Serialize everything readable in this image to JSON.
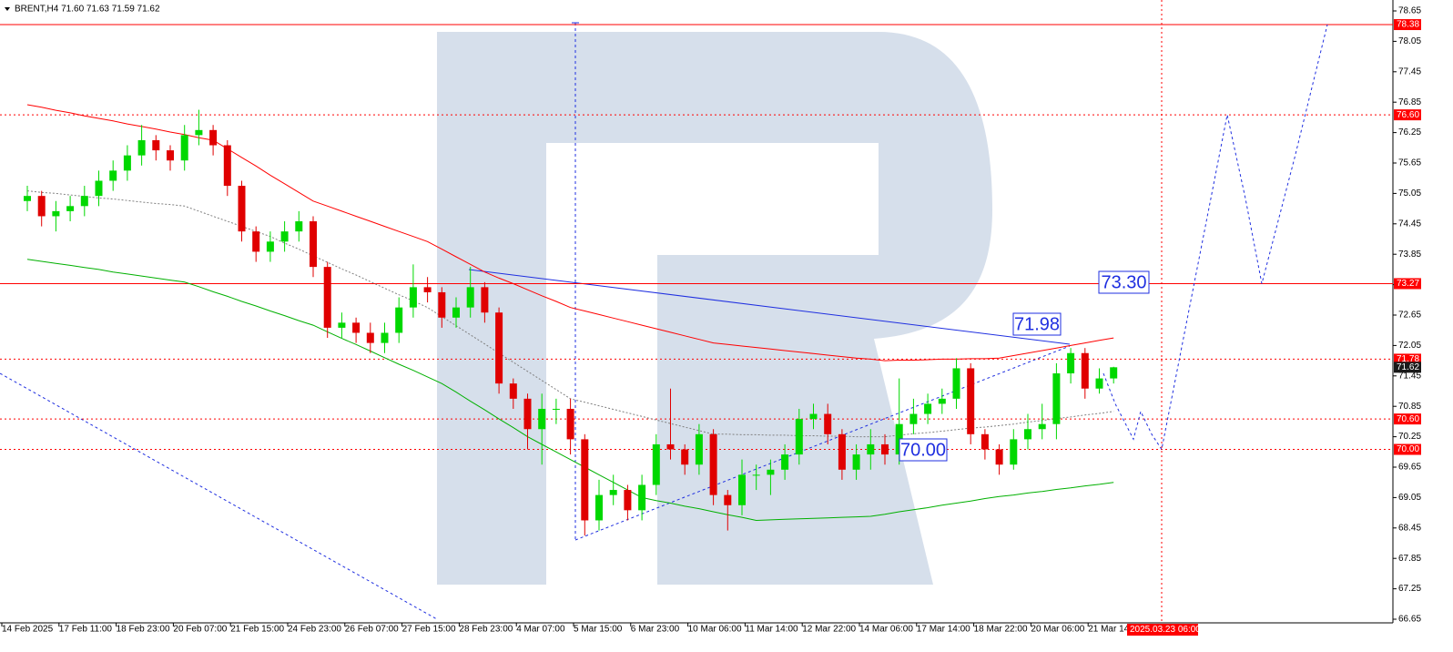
{
  "chart_data": {
    "type": "candlestick",
    "title": "BRENT,H4  71.60 71.63 71.59 71.62",
    "up_color": "#00d800",
    "down_color": "#e00000",
    "categories": [
      "14 Feb 2025",
      null,
      null,
      null,
      "17 Feb 11:00",
      null,
      null,
      null,
      "18 Feb 23:00",
      null,
      null,
      null,
      "20 Feb 07:00",
      null,
      null,
      null,
      "21 Feb 15:00",
      null,
      null,
      null,
      "24 Feb 23:00",
      null,
      null,
      null,
      "26 Feb 07:00",
      null,
      null,
      null,
      "27 Feb 15:00",
      null,
      null,
      null,
      "28 Feb 23:00",
      null,
      null,
      null,
      "4 Mar 07:00",
      null,
      null,
      null,
      "5 Mar 15:00",
      null,
      null,
      null,
      "6 Mar 23:00",
      null,
      null,
      null,
      "10 Mar 06:00",
      null,
      null,
      null,
      "11 Mar 14:00",
      null,
      null,
      null,
      "12 Mar 22:00",
      null,
      null,
      null,
      "14 Mar 06:00",
      null,
      null,
      null,
      "17 Mar 14:00",
      null,
      null,
      null,
      "18 Mar 22:00",
      null,
      null,
      null,
      "20 Mar 06:00",
      null,
      null,
      null,
      "21 Mar 14:00"
    ],
    "open": [
      74.9,
      75.0,
      74.6,
      74.7,
      74.8,
      75.0,
      75.3,
      75.5,
      75.8,
      76.1,
      75.9,
      75.7,
      76.2,
      76.3,
      76.0,
      75.2,
      74.3,
      73.9,
      74.1,
      74.3,
      74.5,
      73.6,
      72.4,
      72.5,
      72.3,
      72.1,
      72.3,
      72.8,
      73.2,
      73.1,
      72.6,
      72.8,
      73.2,
      72.7,
      71.3,
      71.0,
      70.4,
      70.8,
      70.8,
      70.2,
      68.6,
      69.1,
      69.2,
      68.8,
      69.3,
      70.1,
      70.0,
      69.7,
      70.3,
      69.1,
      68.9,
      69.5,
      69.5,
      69.6,
      69.9,
      70.6,
      70.7,
      70.3,
      69.6,
      69.9,
      70.1,
      69.9,
      70.5,
      70.7,
      70.9,
      71.0,
      71.6,
      70.3,
      70.0,
      69.7,
      70.2,
      70.4,
      70.5,
      71.5,
      71.9,
      71.2,
      71.4
    ],
    "high": [
      75.2,
      75.1,
      74.9,
      75.0,
      75.2,
      75.5,
      75.7,
      76.0,
      76.4,
      76.2,
      76.0,
      76.4,
      76.7,
      76.4,
      76.1,
      75.3,
      74.4,
      74.3,
      74.5,
      74.7,
      74.6,
      73.7,
      72.7,
      72.6,
      72.5,
      72.5,
      73.0,
      73.65,
      73.4,
      73.2,
      73.0,
      73.6,
      73.3,
      72.8,
      71.4,
      71.1,
      71.1,
      71.0,
      71.0,
      70.3,
      69.4,
      69.5,
      69.3,
      69.5,
      70.3,
      71.2,
      70.1,
      70.5,
      70.4,
      69.2,
      69.8,
      69.7,
      69.8,
      70.1,
      70.8,
      70.9,
      70.9,
      70.4,
      70.1,
      70.4,
      70.3,
      71.4,
      71.0,
      71.1,
      71.2,
      71.8,
      71.7,
      70.4,
      70.1,
      70.4,
      70.7,
      70.9,
      71.7,
      72.0,
      72.0,
      71.6,
      71.63
    ],
    "low": [
      74.7,
      74.4,
      74.3,
      74.5,
      74.6,
      74.8,
      75.1,
      75.3,
      75.6,
      75.7,
      75.5,
      75.5,
      76.0,
      75.8,
      75.0,
      74.1,
      73.7,
      73.7,
      73.9,
      74.1,
      73.4,
      72.2,
      72.2,
      72.1,
      71.9,
      71.9,
      72.1,
      72.6,
      72.9,
      72.4,
      72.4,
      72.6,
      72.5,
      71.1,
      70.8,
      70.0,
      69.7,
      70.5,
      69.9,
      68.3,
      68.4,
      68.9,
      68.6,
      68.6,
      69.1,
      69.8,
      69.5,
      69.5,
      68.9,
      68.4,
      68.7,
      69.2,
      69.1,
      69.4,
      69.7,
      70.4,
      70.1,
      69.4,
      69.4,
      69.6,
      69.7,
      69.7,
      70.3,
      70.5,
      70.7,
      70.8,
      70.1,
      69.8,
      69.5,
      69.6,
      70.0,
      70.2,
      70.2,
      71.3,
      71.0,
      71.1,
      71.3
    ],
    "close": [
      75.0,
      74.6,
      74.7,
      74.8,
      75.0,
      75.3,
      75.5,
      75.8,
      76.1,
      75.9,
      75.7,
      76.2,
      76.3,
      76.0,
      75.2,
      74.3,
      73.9,
      74.1,
      74.3,
      74.5,
      73.6,
      72.4,
      72.5,
      72.3,
      72.1,
      72.3,
      72.8,
      73.2,
      73.1,
      72.6,
      72.8,
      73.2,
      72.7,
      71.3,
      71.0,
      70.4,
      70.8,
      70.8,
      70.2,
      68.6,
      69.1,
      69.2,
      68.8,
      69.3,
      70.1,
      70.0,
      69.7,
      70.3,
      69.1,
      68.9,
      69.5,
      69.5,
      69.6,
      69.9,
      70.6,
      70.7,
      70.3,
      69.6,
      69.9,
      70.1,
      69.9,
      70.5,
      70.7,
      70.9,
      71.0,
      71.6,
      70.3,
      70.0,
      69.7,
      70.2,
      70.4,
      70.5,
      71.5,
      71.9,
      71.2,
      71.4,
      71.62
    ],
    "series": [
      {
        "color": "#ff0000",
        "style": "solid",
        "values": [
          76.8,
          76.75,
          76.69,
          76.64,
          76.58,
          76.53,
          76.48,
          76.42,
          76.37,
          76.32,
          76.26,
          76.21,
          76.15,
          76.1,
          75.93,
          75.76,
          75.59,
          75.41,
          75.24,
          75.07,
          74.9,
          74.8,
          74.7,
          74.6,
          74.5,
          74.4,
          74.3,
          74.2,
          74.1,
          73.95,
          73.8,
          73.65,
          73.5,
          73.38,
          73.27,
          73.15,
          73.03,
          72.92,
          72.8,
          72.73,
          72.66,
          72.59,
          72.52,
          72.45,
          72.38,
          72.31,
          72.24,
          72.17,
          72.1,
          72.07,
          72.04,
          72.01,
          71.98,
          71.95,
          71.92,
          71.89,
          71.86,
          71.83,
          71.8,
          71.78,
          71.75,
          71.76,
          71.76,
          71.77,
          71.78,
          71.78,
          71.79,
          71.79,
          71.8,
          71.85,
          71.9,
          71.95,
          72.0,
          72.05,
          72.1,
          72.15,
          72.2
        ]
      },
      {
        "color": "#808080",
        "style": "dotted",
        "values": [
          75.1,
          75.07,
          75.05,
          75.02,
          74.99,
          74.96,
          74.94,
          74.91,
          74.88,
          74.85,
          74.83,
          74.8,
          74.7,
          74.6,
          74.5,
          74.4,
          74.3,
          74.2,
          74.07,
          73.95,
          73.82,
          73.69,
          73.56,
          73.44,
          73.31,
          73.18,
          73.05,
          72.93,
          72.8,
          72.62,
          72.44,
          72.26,
          72.08,
          71.9,
          71.72,
          71.54,
          71.36,
          71.18,
          71.0,
          70.93,
          70.86,
          70.79,
          70.72,
          70.65,
          70.58,
          70.51,
          70.44,
          70.37,
          70.3,
          70.3,
          70.29,
          70.29,
          70.28,
          70.28,
          70.27,
          70.27,
          70.26,
          70.26,
          70.25,
          70.25,
          70.25,
          70.28,
          70.31,
          70.33,
          70.36,
          70.39,
          70.42,
          70.44,
          70.47,
          70.5,
          70.54,
          70.57,
          70.61,
          70.64,
          70.68,
          70.71,
          70.75
        ]
      },
      {
        "color": "#00b000",
        "style": "solid",
        "values": [
          73.75,
          73.71,
          73.67,
          73.63,
          73.59,
          73.55,
          73.5,
          73.46,
          73.42,
          73.38,
          73.34,
          73.3,
          73.21,
          73.11,
          73.02,
          72.92,
          72.83,
          72.73,
          72.64,
          72.54,
          72.45,
          72.32,
          72.19,
          72.07,
          71.94,
          71.81,
          71.68,
          71.56,
          71.43,
          71.3,
          71.13,
          70.95,
          70.78,
          70.6,
          70.43,
          70.25,
          70.1,
          69.95,
          69.8,
          69.65,
          69.5,
          69.35,
          69.2,
          69.05,
          68.99,
          68.94,
          68.88,
          68.83,
          68.77,
          68.71,
          68.66,
          68.6,
          68.61,
          68.62,
          68.63,
          68.64,
          68.65,
          68.66,
          68.67,
          68.68,
          68.72,
          68.77,
          68.81,
          68.85,
          68.9,
          68.94,
          68.98,
          69.03,
          69.07,
          69.1,
          69.14,
          69.17,
          69.21,
          69.24,
          69.28,
          69.31,
          69.35
        ]
      }
    ],
    "ylim": [
      66.65,
      78.65
    ],
    "yticks": [
      78.65,
      78.05,
      77.45,
      76.85,
      76.25,
      75.65,
      75.05,
      74.45,
      73.85,
      73.25,
      72.65,
      72.05,
      71.45,
      70.85,
      70.25,
      69.65,
      69.05,
      68.45,
      67.85,
      67.25,
      66.65
    ],
    "levels": [
      {
        "price": 78.38,
        "style": "solid"
      },
      {
        "price": {
          "value": 76.6,
          "label": "76.60"
        },
        "style": "dotted"
      },
      {
        "price": 73.27,
        "style": "solid"
      },
      {
        "price": 71.78,
        "style": "dotted"
      },
      {
        "price": {
          "value": 70.6,
          "label": "70.60"
        },
        "style": "dotted"
      },
      {
        "price": {
          "value": 70,
          "label": "70.00"
        },
        "style": "dotted"
      }
    ],
    "level_color": "#ff0000",
    "current_price": 71.62,
    "annotations": [
      "73.30",
      "71.98",
      "70.00"
    ],
    "forecast": {
      "color": "#1f2fe0",
      "values": [
        71.5,
        70.9,
        70.2,
        70.75,
        70.3,
        70.0,
        76.6,
        74.95,
        73.27,
        75.75,
        78.38
      ]
    },
    "cursor_label": "2025.03.23 06:00"
  }
}
